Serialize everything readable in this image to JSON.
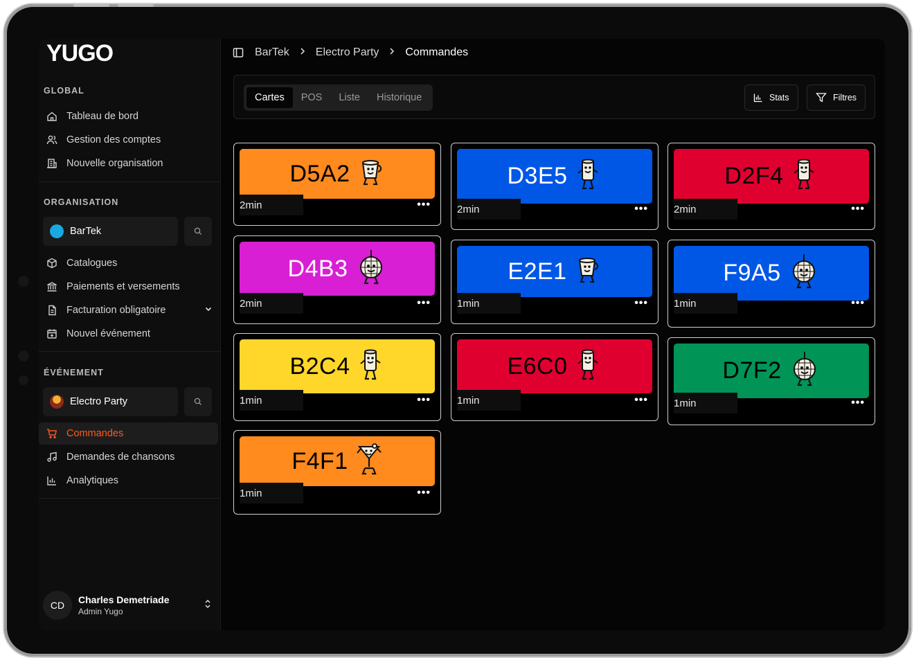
{
  "sidebar": {
    "logo": "YUGO",
    "global": {
      "title": "GLOBAL",
      "items": [
        {
          "label": "Tableau de bord",
          "icon": "home-icon"
        },
        {
          "label": "Gestion des comptes",
          "icon": "users-icon"
        },
        {
          "label": "Nouvelle organisation",
          "icon": "building-icon"
        }
      ]
    },
    "organisation": {
      "title": "ORGANISATION",
      "selected": "BarTek",
      "items": [
        {
          "label": "Catalogues",
          "icon": "box-icon"
        },
        {
          "label": "Paiements et versements",
          "icon": "bank-icon"
        },
        {
          "label": "Facturation obligatoire",
          "icon": "invoice-icon"
        },
        {
          "label": "Nouvel événement",
          "icon": "calendar-icon"
        }
      ]
    },
    "evenement": {
      "title": "ÉVÉNEMENT",
      "selected": "Electro Party",
      "items": [
        {
          "label": "Commandes",
          "icon": "cart-icon",
          "active": true
        },
        {
          "label": "Demandes de chansons",
          "icon": "music-icon"
        },
        {
          "label": "Analytiques",
          "icon": "chart-icon"
        }
      ]
    },
    "user": {
      "initials": "CD",
      "name": "Charles Demetriade",
      "role": "Admin Yugo"
    }
  },
  "breadcrumb": [
    "BarTek",
    "Electro Party",
    "Commandes"
  ],
  "tabs": [
    "Cartes",
    "POS",
    "Liste",
    "Historique"
  ],
  "active_tab": "Cartes",
  "toolbar": {
    "stats_label": "Stats",
    "filters_label": "Filtres"
  },
  "colors": {
    "orange": "#ff8a1e",
    "blue": "#0057e6",
    "red": "#e0002f",
    "magenta": "#d81fd4",
    "yellow": "#ffd62a",
    "green": "#009457",
    "accent": "#ff5a1f"
  },
  "orders": [
    {
      "code": "D5A2",
      "time": "2min",
      "color": "#ff8a1e",
      "text": "#000000",
      "mascot": "cup-mascot-icon"
    },
    {
      "code": "D3E5",
      "time": "2min",
      "color": "#0057e6",
      "text": "#ffffff",
      "mascot": "can-mascot-icon"
    },
    {
      "code": "D2F4",
      "time": "2min",
      "color": "#e0002f",
      "text": "#000000",
      "mascot": "can-mascot-icon"
    },
    {
      "code": "D4B3",
      "time": "2min",
      "color": "#d81fd4",
      "text": "#ffffff",
      "mascot": "discoball-mascot-icon"
    },
    {
      "code": "E2E1",
      "time": "1min",
      "color": "#0057e6",
      "text": "#ffffff",
      "mascot": "cup-mascot-icon"
    },
    {
      "code": "F9A5",
      "time": "1min",
      "color": "#0057e6",
      "text": "#ffffff",
      "mascot": "discoball-mascot-icon"
    },
    {
      "code": "B2C4",
      "time": "1min",
      "color": "#ffd62a",
      "text": "#000000",
      "mascot": "can-mascot-icon"
    },
    {
      "code": "E6C0",
      "time": "1min",
      "color": "#e0002f",
      "text": "#000000",
      "mascot": "can-mascot-icon"
    },
    {
      "code": "D7F2",
      "time": "1min",
      "color": "#009457",
      "text": "#000000",
      "mascot": "discoball-mascot-icon"
    },
    {
      "code": "F4F1",
      "time": "1min",
      "color": "#ff8a1e",
      "text": "#000000",
      "mascot": "cocktail-mascot-icon"
    }
  ]
}
